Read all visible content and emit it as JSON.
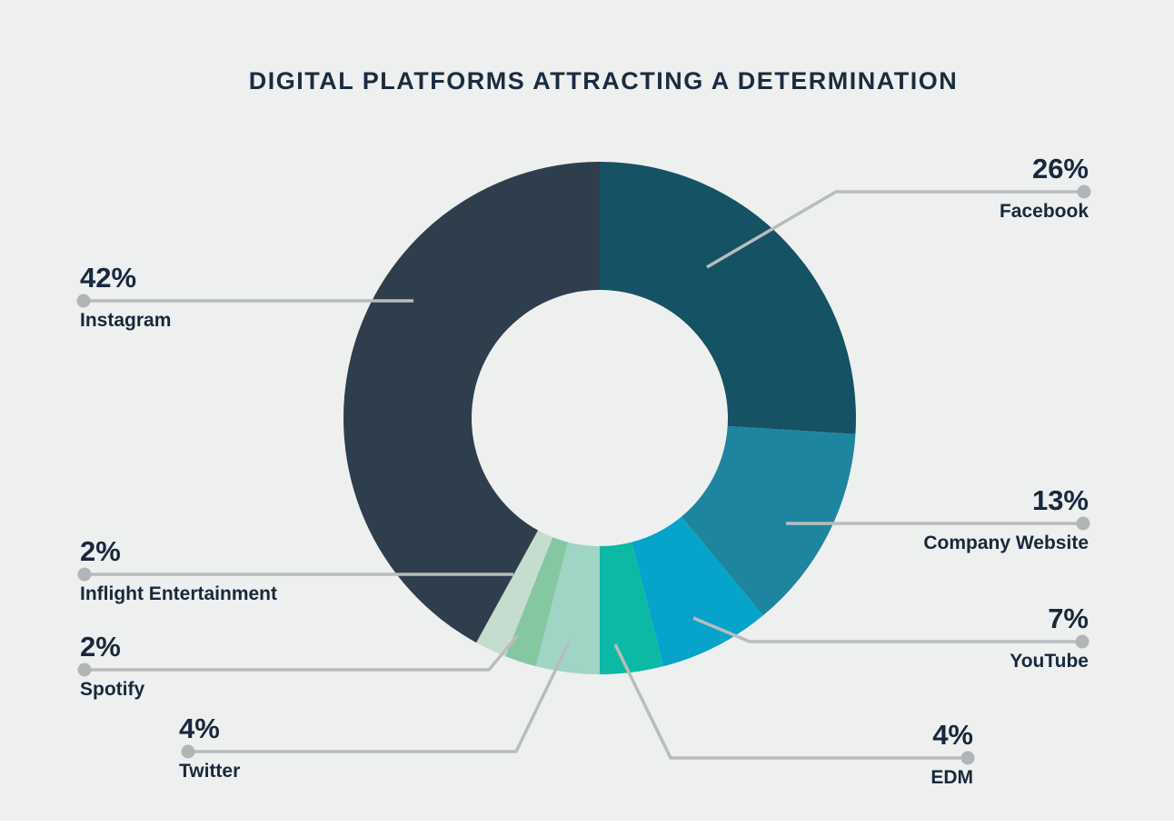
{
  "title": "DIGITAL PLATFORMS ATTRACTING A DETERMINATION",
  "chart_data": {
    "type": "pie",
    "subtype": "donut",
    "title": "DIGITAL PLATFORMS ATTRACTING A DETERMINATION",
    "units": "%",
    "direction": "clockwise",
    "start_angle_deg": 0,
    "inner_radius_ratio": 0.5,
    "legend_position": "callout-labels",
    "segments": [
      {
        "label": "Facebook",
        "value": 26,
        "display": "26%",
        "color": "#155263"
      },
      {
        "label": "Company Website",
        "value": 13,
        "display": "13%",
        "color": "#1d869e"
      },
      {
        "label": "YouTube",
        "value": 7,
        "display": "7%",
        "color": "#06a3cb"
      },
      {
        "label": "EDM",
        "value": 4,
        "display": "4%",
        "color": "#0cb9a4"
      },
      {
        "label": "Twitter",
        "value": 4,
        "display": "4%",
        "color": "#a0d4c5"
      },
      {
        "label": "Spotify",
        "value": 2,
        "display": "2%",
        "color": "#85c7a1"
      },
      {
        "label": "Inflight Entertainment",
        "value": 2,
        "display": "2%",
        "color": "#c4ddcf"
      },
      {
        "label": "Instagram",
        "value": 42,
        "display": "42%",
        "color": "#2f3e4d"
      }
    ]
  },
  "styles": {
    "background_color": "#eeefef",
    "text_color": "#16293c",
    "title_color": "#1a2c3f",
    "leader_line_color": "#b9bcbe",
    "leader_dot_color": "#b2b5b7",
    "footer_strip_color": "#ffffff"
  }
}
